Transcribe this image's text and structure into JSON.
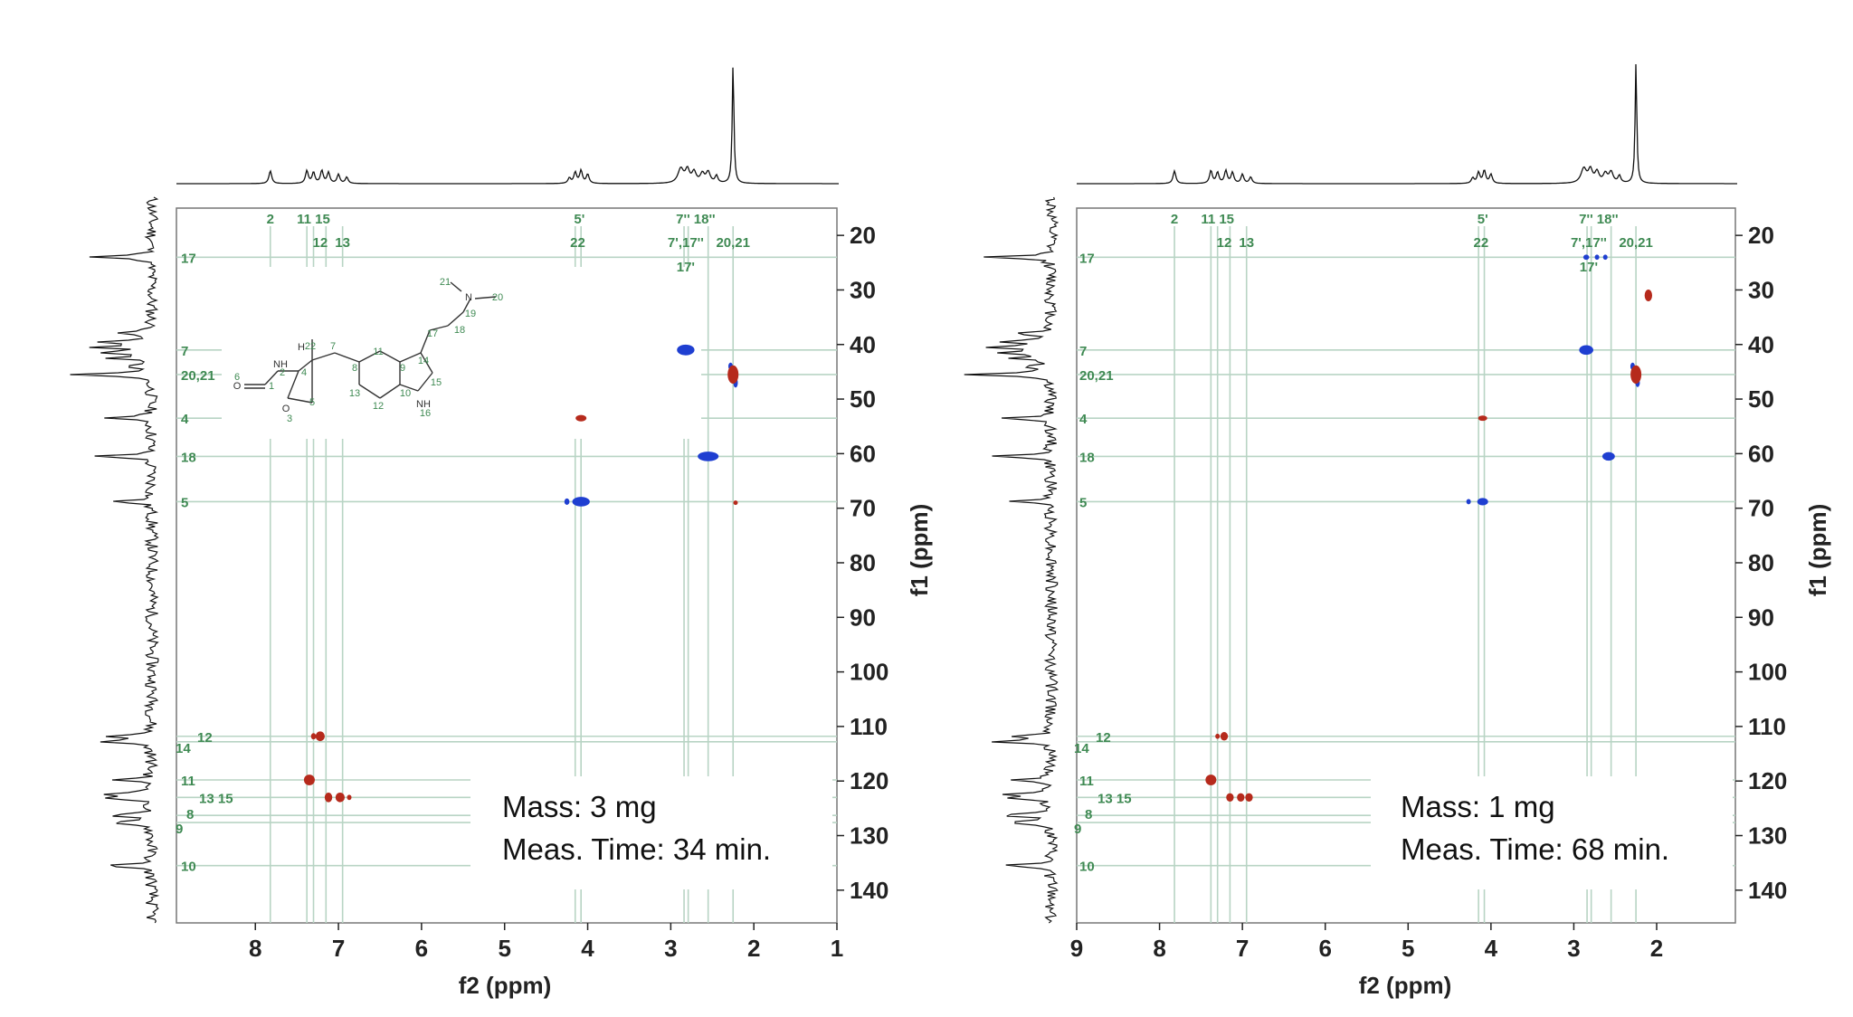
{
  "chart_data": [
    {
      "type": "scatter",
      "title": "",
      "xlabel": "f2 (ppm)",
      "ylabel": "f1 (ppm)",
      "xlim": [
        8.95,
        1.0
      ],
      "ylim": [
        15,
        146
      ],
      "x_ticks": [
        "8",
        "7",
        "6",
        "5",
        "4",
        "3",
        "2",
        "1"
      ],
      "y_ticks": [
        "20",
        "30",
        "40",
        "50",
        "60",
        "70",
        "80",
        "90",
        "100",
        "110",
        "120",
        "130",
        "140"
      ],
      "grid": false,
      "annotation_lines": [
        "Mass: 3 mg",
        "Meas. Time: 34 min."
      ],
      "h_labels_top": [
        {
          "text": "2",
          "x": 7.82
        },
        {
          "text": "11 15",
          "x": 7.3
        },
        {
          "text": "5'",
          "x": 4.1
        },
        {
          "text": "7'' 18''",
          "x": 2.7
        }
      ],
      "h_labels_bottom": [
        {
          "text": "12",
          "x": 7.22
        },
        {
          "text": "13",
          "x": 6.95
        },
        {
          "text": "22",
          "x": 4.12
        },
        {
          "text": "7',17''",
          "x": 2.82
        },
        {
          "text": "20,21",
          "x": 2.25
        }
      ],
      "h_labels_extra": [
        {
          "text": "17'",
          "x": 2.82
        }
      ],
      "c_labels": [
        {
          "text": "17",
          "y": 24
        },
        {
          "text": "7",
          "y": 41
        },
        {
          "text": "20,21",
          "y": 45.5
        },
        {
          "text": "4",
          "y": 53.5
        },
        {
          "text": "18",
          "y": 60.5
        },
        {
          "text": "5",
          "y": 68.8
        },
        {
          "text": "12",
          "y": 111.8
        },
        {
          "text": "14",
          "y": 112.8
        },
        {
          "text": "11",
          "y": 119.8
        },
        {
          "text": "13 15",
          "y": 123
        },
        {
          "text": "8",
          "y": 126.3
        },
        {
          "text": "9",
          "y": 127.6
        },
        {
          "text": "10",
          "y": 135.5
        }
      ],
      "v_lines_x": [
        7.82,
        7.38,
        7.3,
        7.15,
        6.95,
        4.15,
        4.08,
        2.84,
        2.79,
        2.55,
        2.25
      ],
      "h_lines_y": [
        24,
        41,
        45.5,
        53.5,
        60.5,
        68.8,
        111.8,
        112.8,
        119.8,
        123,
        126.3,
        127.6,
        135.5
      ],
      "series": [
        {
          "name": "",
          "color": "#1f3fd1",
          "points": [
            {
              "x": 2.82,
              "y": 41,
              "rx": 0.1,
              "ry": 0.9
            },
            {
              "x": 2.55,
              "y": 60.5,
              "rx": 0.12,
              "ry": 0.8
            },
            {
              "x": 4.08,
              "y": 68.8,
              "rx": 0.1,
              "ry": 0.8
            },
            {
              "x": 4.25,
              "y": 68.8,
              "rx": 0.025,
              "ry": 0.5
            },
            {
              "x": 2.22,
              "y": 47,
              "rx": 0.02,
              "ry": 0.8
            },
            {
              "x": 2.28,
              "y": 44,
              "rx": 0.02,
              "ry": 0.6
            }
          ]
        },
        {
          "name": "",
          "color": "#b62a1c",
          "points": [
            {
              "x": 2.25,
              "y": 45.5,
              "rx": 0.06,
              "ry": 1.6
            },
            {
              "x": 4.08,
              "y": 53.5,
              "rx": 0.06,
              "ry": 0.5
            },
            {
              "x": 7.22,
              "y": 111.8,
              "rx": 0.05,
              "ry": 0.8
            },
            {
              "x": 7.3,
              "y": 111.8,
              "rx": 0.025,
              "ry": 0.5
            },
            {
              "x": 7.35,
              "y": 119.8,
              "rx": 0.06,
              "ry": 0.9
            },
            {
              "x": 7.12,
              "y": 123,
              "rx": 0.04,
              "ry": 0.8
            },
            {
              "x": 6.98,
              "y": 123,
              "rx": 0.05,
              "ry": 0.8
            },
            {
              "x": 6.87,
              "y": 123,
              "rx": 0.02,
              "ry": 0.4
            },
            {
              "x": 2.22,
              "y": 69,
              "rx": 0.01,
              "ry": 0.3
            }
          ]
        }
      ]
    },
    {
      "type": "scatter",
      "title": "",
      "xlabel": "f2 (ppm)",
      "ylabel": "f1 (ppm)",
      "xlim": [
        9.0,
        1.05
      ],
      "ylim": [
        15,
        146
      ],
      "x_ticks": [
        "9",
        "8",
        "7",
        "6",
        "5",
        "4",
        "3",
        "2"
      ],
      "y_ticks": [
        "20",
        "30",
        "40",
        "50",
        "60",
        "70",
        "80",
        "90",
        "100",
        "110",
        "120",
        "130",
        "140"
      ],
      "grid": false,
      "annotation_lines": [
        "Mass: 1 mg",
        "Meas. Time: 68 min."
      ],
      "h_labels_top": [
        {
          "text": "2",
          "x": 7.82
        },
        {
          "text": "11 15",
          "x": 7.3
        },
        {
          "text": "5'",
          "x": 4.1
        },
        {
          "text": "7'' 18''",
          "x": 2.7
        }
      ],
      "h_labels_bottom": [
        {
          "text": "12",
          "x": 7.22
        },
        {
          "text": "13",
          "x": 6.95
        },
        {
          "text": "22",
          "x": 4.12
        },
        {
          "text": "7',17''",
          "x": 2.82
        },
        {
          "text": "20,21",
          "x": 2.25
        }
      ],
      "h_labels_extra": [
        {
          "text": "17'",
          "x": 2.82
        }
      ],
      "c_labels": [
        {
          "text": "17",
          "y": 24
        },
        {
          "text": "7",
          "y": 41
        },
        {
          "text": "20,21",
          "y": 45.5
        },
        {
          "text": "4",
          "y": 53.5
        },
        {
          "text": "18",
          "y": 60.5
        },
        {
          "text": "5",
          "y": 68.8
        },
        {
          "text": "12",
          "y": 111.8
        },
        {
          "text": "14",
          "y": 112.8
        },
        {
          "text": "11",
          "y": 119.8
        },
        {
          "text": "13 15",
          "y": 123
        },
        {
          "text": "8",
          "y": 126.3
        },
        {
          "text": "9",
          "y": 127.6
        },
        {
          "text": "10",
          "y": 135.5
        }
      ],
      "v_lines_x": [
        7.82,
        7.38,
        7.3,
        7.15,
        6.95,
        4.15,
        4.08,
        2.84,
        2.79,
        2.55,
        2.25
      ],
      "h_lines_y": [
        24,
        41,
        45.5,
        53.5,
        60.5,
        68.8,
        111.8,
        112.8,
        119.8,
        123,
        126.3,
        127.6,
        135.5
      ],
      "series": [
        {
          "name": "",
          "color": "#1f3fd1",
          "points": [
            {
              "x": 2.85,
              "y": 41,
              "rx": 0.08,
              "ry": 0.8
            },
            {
              "x": 2.58,
              "y": 60.5,
              "rx": 0.07,
              "ry": 0.7
            },
            {
              "x": 4.1,
              "y": 68.8,
              "rx": 0.06,
              "ry": 0.6
            },
            {
              "x": 4.27,
              "y": 68.8,
              "rx": 0.02,
              "ry": 0.4
            },
            {
              "x": 2.85,
              "y": 24,
              "rx": 0.03,
              "ry": 0.4
            },
            {
              "x": 2.72,
              "y": 24,
              "rx": 0.02,
              "ry": 0.4
            },
            {
              "x": 2.62,
              "y": 24,
              "rx": 0.02,
              "ry": 0.4
            },
            {
              "x": 2.23,
              "y": 47,
              "rx": 0.02,
              "ry": 0.7
            },
            {
              "x": 2.29,
              "y": 44,
              "rx": 0.02,
              "ry": 0.6
            }
          ]
        },
        {
          "name": "",
          "color": "#b62a1c",
          "points": [
            {
              "x": 2.25,
              "y": 45.5,
              "rx": 0.06,
              "ry": 1.6
            },
            {
              "x": 2.1,
              "y": 31,
              "rx": 0.04,
              "ry": 1.0
            },
            {
              "x": 4.1,
              "y": 53.5,
              "rx": 0.05,
              "ry": 0.4
            },
            {
              "x": 7.22,
              "y": 111.8,
              "rx": 0.04,
              "ry": 0.7
            },
            {
              "x": 7.3,
              "y": 111.8,
              "rx": 0.02,
              "ry": 0.4
            },
            {
              "x": 7.38,
              "y": 119.8,
              "rx": 0.06,
              "ry": 0.9
            },
            {
              "x": 7.15,
              "y": 123,
              "rx": 0.04,
              "ry": 0.7
            },
            {
              "x": 7.02,
              "y": 123,
              "rx": 0.04,
              "ry": 0.7
            },
            {
              "x": 6.92,
              "y": 123,
              "rx": 0.04,
              "ry": 0.7
            }
          ]
        }
      ]
    }
  ],
  "colors": {
    "guide_lines": "#b8d4c4",
    "labels": "#3f8a53",
    "spectrum": "#111111",
    "frame": "#777777"
  },
  "molecule": {
    "atom_labels": [
      "21",
      "N",
      "20",
      "19",
      "18",
      "17",
      "14",
      "11",
      "9",
      "15",
      "NH",
      "16",
      "10",
      "12",
      "13",
      "8",
      "7",
      "H",
      "22",
      "4",
      "NH",
      "2",
      "6",
      "O",
      "1",
      "O",
      "3",
      "5"
    ]
  }
}
